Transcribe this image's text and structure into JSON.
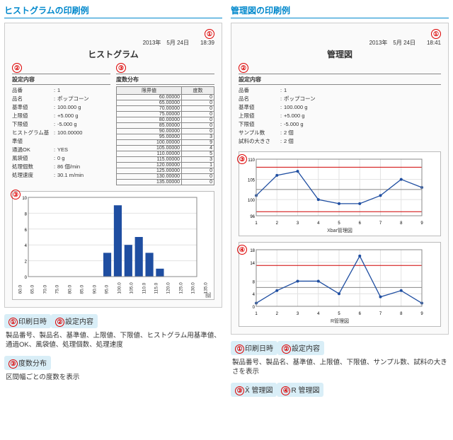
{
  "left": {
    "section_title": "ヒストグラムの印刷例",
    "date": "2013年　5月 24日　　18:39",
    "sheet_title": "ヒストグラム",
    "badge_num": {
      "b1": "①",
      "b2": "②",
      "b3": "③"
    },
    "settings_hdr": "設定内容",
    "settings": [
      [
        "品番",
        "1"
      ],
      [
        "品名",
        "ポップコーン"
      ],
      [
        "基準値",
        "100.000 g"
      ],
      [
        "上限値",
        "+5.000 g"
      ],
      [
        "下限値",
        "-5.000 g"
      ],
      [
        "ヒストグラム基準値",
        "100.00000"
      ],
      [
        "通過OK",
        "YES"
      ],
      [
        "風袋値",
        "0 g"
      ],
      [
        "処理個数",
        "86 個/min"
      ],
      [
        "処理速度",
        "30.1 m/min"
      ]
    ],
    "dist_hdr": "度数分布",
    "dist_cols": [
      "限界値",
      "度数"
    ],
    "dist_rows": [
      [
        "60.00000",
        "0"
      ],
      [
        "65.00000",
        "0"
      ],
      [
        "70.00000",
        "0"
      ],
      [
        "75.00000",
        "0"
      ],
      [
        "80.00000",
        "0"
      ],
      [
        "85.00000",
        "0"
      ],
      [
        "90.00000",
        "0"
      ],
      [
        "95.00000",
        "3"
      ],
      [
        "100.00000",
        "9"
      ],
      [
        "105.00000",
        "4"
      ],
      [
        "110.00000",
        "5"
      ],
      [
        "115.00000",
        "3"
      ],
      [
        "120.00000",
        "1"
      ],
      [
        "125.00000",
        "0"
      ],
      [
        "130.00000",
        "0"
      ],
      [
        "135.00000",
        "0"
      ]
    ],
    "hist": {
      "type": "histogram",
      "bar_color": "#1f4ea1",
      "grid_color": "#e2e2e2",
      "background": "#ffffff",
      "ylim": [
        0,
        10
      ],
      "ytick_step": 2,
      "x_labels": [
        "60.0",
        "65.0",
        "70.0",
        "75.0",
        "80.0",
        "85.0",
        "90.0",
        "95.0",
        "100.0",
        "105.0",
        "110.0",
        "115.0",
        "120.0",
        "125.0",
        "130.0",
        "135.0"
      ],
      "values": [
        0,
        0,
        0,
        0,
        0,
        0,
        0,
        3,
        9,
        4,
        5,
        3,
        1,
        0,
        0,
        0
      ],
      "unit": "[g]"
    },
    "legend": [
      {
        "n": "①",
        "t": "印刷日時",
        "d": ""
      },
      {
        "n": "②",
        "t": "設定内容",
        "d": "製品番号、製品名、基準値、上限値、下限値、ヒストグラム用基準値、通過OK、風袋値、処理個数、処理速度"
      },
      {
        "n": "③",
        "t": "度数分布",
        "d": "区間幅ごとの度数を表示"
      }
    ]
  },
  "right": {
    "section_title": "管理図の印刷例",
    "date": "2013年　5月 24日　　18:41",
    "sheet_title": "管理図",
    "settings_hdr": "設定内容",
    "settings": [
      [
        "品番",
        "1"
      ],
      [
        "品名",
        "ポップコーン"
      ],
      [
        "基準値",
        "100.000 g"
      ],
      [
        "上限値",
        "+5.000 g"
      ],
      [
        "下限値",
        "-5.000 g"
      ],
      [
        "サンプル数",
        "2 個"
      ],
      [
        "試料の大きさ",
        "2 個"
      ]
    ],
    "xbar": {
      "type": "line",
      "caption": "Xbar管理図",
      "grid_color": "#e2e2e2",
      "background": "#ffffff",
      "line_color": "#1f4ea1",
      "limit_color": "#d00000",
      "center_color": "#888888",
      "ylim": [
        96,
        110
      ],
      "yticks": [
        96,
        100,
        105,
        110
      ],
      "x": [
        1,
        2,
        3,
        4,
        5,
        6,
        7,
        8,
        9
      ],
      "y": [
        101,
        106,
        107,
        100,
        99,
        99,
        101,
        105,
        103
      ],
      "ucl": 108,
      "lcl": 97,
      "cl": 102.5
    },
    "r": {
      "type": "line",
      "caption": "R管理図",
      "grid_color": "#e2e2e2",
      "background": "#ffffff",
      "line_color": "#1f4ea1",
      "limit_color": "#d00000",
      "center_color": "#888888",
      "ylim": [
        0,
        18
      ],
      "yticks": [
        0,
        4,
        8,
        14,
        18
      ],
      "x": [
        1,
        2,
        3,
        4,
        5,
        6,
        7,
        8,
        9
      ],
      "y": [
        1,
        5,
        8,
        8,
        4,
        16,
        3,
        5,
        1
      ],
      "ucl": 13,
      "lcl": 0,
      "cl": 6
    },
    "legend": [
      {
        "n": "①",
        "t": "印刷日時",
        "d": ""
      },
      {
        "n": "②",
        "t": "設定内容",
        "d": "製品番号、製品名、基準値、上限値、下限値、サンプル数、試料の大きさを表示"
      },
      {
        "n": "③",
        "t": "X̄ 管理図",
        "d": ""
      },
      {
        "n": "④",
        "t": "R 管理図",
        "d": ""
      }
    ]
  }
}
